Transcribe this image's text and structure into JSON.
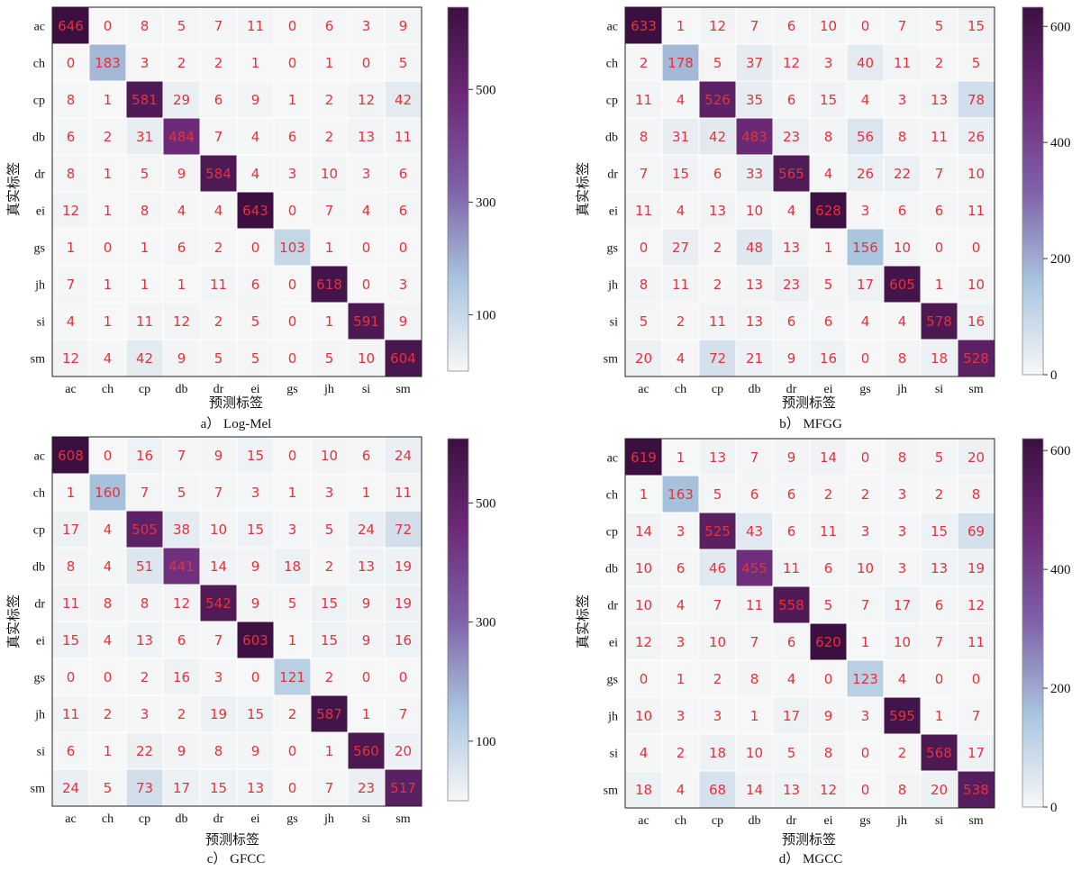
{
  "chart_data": [
    {
      "type": "heatmap",
      "caption": "a） Log-Mel",
      "xlabel": "预测标签",
      "ylabel": "真实标签",
      "x_categories": [
        "ac",
        "ch",
        "cp",
        "db",
        "dr",
        "ei",
        "gs",
        "jh",
        "si",
        "sm"
      ],
      "y_categories": [
        "ac",
        "ch",
        "cp",
        "db",
        "dr",
        "ei",
        "gs",
        "jh",
        "si",
        "sm"
      ],
      "values": [
        [
          646,
          0,
          8,
          5,
          7,
          11,
          0,
          6,
          3,
          9
        ],
        [
          0,
          183,
          3,
          2,
          2,
          1,
          0,
          1,
          0,
          5
        ],
        [
          8,
          1,
          581,
          29,
          6,
          9,
          1,
          2,
          12,
          42
        ],
        [
          6,
          2,
          31,
          484,
          7,
          4,
          6,
          2,
          13,
          11
        ],
        [
          8,
          1,
          5,
          9,
          584,
          4,
          3,
          10,
          3,
          6
        ],
        [
          12,
          1,
          8,
          4,
          4,
          643,
          0,
          7,
          4,
          6
        ],
        [
          1,
          0,
          1,
          6,
          2,
          0,
          103,
          1,
          0,
          0
        ],
        [
          7,
          1,
          1,
          1,
          11,
          6,
          0,
          618,
          0,
          3
        ],
        [
          4,
          1,
          11,
          12,
          2,
          5,
          0,
          1,
          591,
          9
        ],
        [
          12,
          4,
          42,
          9,
          5,
          5,
          0,
          5,
          10,
          604
        ]
      ],
      "colorbar": {
        "range": [
          0,
          646
        ],
        "ticks": [
          100,
          300,
          500
        ]
      }
    },
    {
      "type": "heatmap",
      "caption": "b） MFGG",
      "xlabel": "预测标签",
      "ylabel": "真实标签",
      "x_categories": [
        "ac",
        "ch",
        "cp",
        "db",
        "dr",
        "ei",
        "gs",
        "jh",
        "si",
        "sm"
      ],
      "y_categories": [
        "ac",
        "ch",
        "cp",
        "db",
        "dr",
        "ei",
        "gs",
        "jh",
        "si",
        "sm"
      ],
      "values": [
        [
          633,
          1,
          12,
          7,
          6,
          10,
          0,
          7,
          5,
          15
        ],
        [
          2,
          178,
          5,
          37,
          12,
          3,
          40,
          11,
          2,
          5
        ],
        [
          11,
          4,
          526,
          35,
          6,
          15,
          4,
          3,
          13,
          78
        ],
        [
          8,
          31,
          42,
          483,
          23,
          8,
          56,
          8,
          11,
          26
        ],
        [
          7,
          15,
          6,
          33,
          565,
          4,
          26,
          22,
          7,
          10
        ],
        [
          11,
          4,
          13,
          10,
          4,
          628,
          3,
          6,
          6,
          11
        ],
        [
          0,
          27,
          2,
          48,
          13,
          1,
          156,
          10,
          0,
          0
        ],
        [
          8,
          11,
          2,
          13,
          23,
          5,
          17,
          605,
          1,
          10
        ],
        [
          5,
          2,
          11,
          13,
          6,
          6,
          4,
          4,
          578,
          16
        ],
        [
          20,
          4,
          72,
          21,
          9,
          16,
          0,
          8,
          18,
          528
        ]
      ],
      "colorbar": {
        "range": [
          0,
          633
        ],
        "ticks": [
          0,
          200,
          400,
          600
        ]
      }
    },
    {
      "type": "heatmap",
      "caption": "c） GFCC",
      "xlabel": "预测标签",
      "ylabel": "真实标签",
      "x_categories": [
        "ac",
        "ch",
        "cp",
        "db",
        "dr",
        "ei",
        "gs",
        "jh",
        "si",
        "sm"
      ],
      "y_categories": [
        "ac",
        "ch",
        "cp",
        "db",
        "dr",
        "ei",
        "gs",
        "jh",
        "si",
        "sm"
      ],
      "values": [
        [
          608,
          0,
          16,
          7,
          9,
          15,
          0,
          10,
          6,
          24
        ],
        [
          1,
          160,
          7,
          5,
          7,
          3,
          1,
          3,
          1,
          11
        ],
        [
          17,
          4,
          505,
          38,
          10,
          15,
          3,
          5,
          24,
          72
        ],
        [
          8,
          4,
          51,
          441,
          14,
          9,
          18,
          2,
          13,
          19
        ],
        [
          11,
          8,
          8,
          12,
          542,
          9,
          5,
          15,
          9,
          19
        ],
        [
          15,
          4,
          13,
          6,
          7,
          603,
          1,
          15,
          9,
          16
        ],
        [
          0,
          0,
          2,
          16,
          3,
          0,
          121,
          2,
          0,
          0
        ],
        [
          11,
          2,
          3,
          2,
          19,
          15,
          2,
          587,
          1,
          7
        ],
        [
          6,
          1,
          22,
          9,
          8,
          9,
          0,
          1,
          560,
          20
        ],
        [
          24,
          5,
          73,
          17,
          15,
          13,
          0,
          7,
          23,
          517
        ]
      ],
      "colorbar": {
        "range": [
          0,
          608
        ],
        "ticks": [
          100,
          300,
          500
        ]
      }
    },
    {
      "type": "heatmap",
      "caption": "d） MGCC",
      "xlabel": "预测标签",
      "ylabel": "真实标签",
      "x_categories": [
        "ac",
        "ch",
        "cp",
        "db",
        "dr",
        "ei",
        "gs",
        "jh",
        "si",
        "sm"
      ],
      "y_categories": [
        "ac",
        "ch",
        "cp",
        "db",
        "dr",
        "ei",
        "gs",
        "jh",
        "si",
        "sm"
      ],
      "values": [
        [
          619,
          1,
          13,
          7,
          9,
          14,
          0,
          8,
          5,
          20
        ],
        [
          1,
          163,
          5,
          6,
          6,
          2,
          2,
          3,
          2,
          8
        ],
        [
          14,
          3,
          525,
          43,
          6,
          11,
          3,
          3,
          15,
          69
        ],
        [
          10,
          6,
          46,
          455,
          11,
          6,
          10,
          3,
          13,
          19
        ],
        [
          10,
          4,
          7,
          11,
          558,
          5,
          7,
          17,
          6,
          12
        ],
        [
          12,
          3,
          10,
          7,
          6,
          620,
          1,
          10,
          7,
          11
        ],
        [
          0,
          1,
          2,
          8,
          4,
          0,
          123,
          4,
          0,
          0
        ],
        [
          10,
          3,
          3,
          1,
          17,
          9,
          3,
          595,
          1,
          7
        ],
        [
          4,
          2,
          18,
          10,
          5,
          8,
          0,
          2,
          568,
          17
        ],
        [
          18,
          4,
          68,
          14,
          13,
          12,
          0,
          8,
          20,
          538
        ]
      ],
      "colorbar": {
        "range": [
          0,
          620
        ],
        "ticks": [
          0,
          200,
          400,
          600
        ]
      }
    }
  ],
  "colors": {
    "cell_text": "#e8303a",
    "colormap": [
      "#f7f7f7",
      "#a9c5de",
      "#7e62a8",
      "#6d2a78",
      "#3b1040"
    ]
  }
}
